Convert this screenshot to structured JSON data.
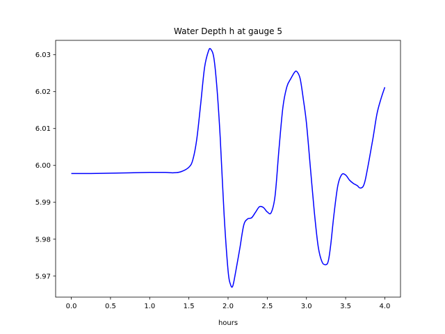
{
  "chart_data": {
    "type": "line",
    "title": "Water Depth h at gauge 5",
    "xlabel": "hours",
    "ylabel": "",
    "xlim": [
      -0.2,
      4.2
    ],
    "ylim": [
      5.9643,
      6.0339
    ],
    "xticks": [
      0.0,
      0.5,
      1.0,
      1.5,
      2.0,
      2.5,
      3.0,
      3.5,
      4.0
    ],
    "xtick_labels": [
      "0.0",
      "0.5",
      "1.0",
      "1.5",
      "2.0",
      "2.5",
      "3.0",
      "3.5",
      "4.0"
    ],
    "yticks": [
      5.97,
      5.98,
      5.99,
      6.0,
      6.01,
      6.02,
      6.03
    ],
    "ytick_labels": [
      "5.97",
      "5.98",
      "5.99",
      "6.00",
      "6.01",
      "6.02",
      "6.03"
    ],
    "grid": false,
    "series": [
      {
        "color": "#0000ff",
        "x": [
          0.0,
          0.25,
          0.5,
          0.75,
          1.0,
          1.2,
          1.3,
          1.4,
          1.5,
          1.55,
          1.6,
          1.65,
          1.7,
          1.75,
          1.78,
          1.82,
          1.86,
          1.9,
          1.95,
          2.0,
          2.03,
          2.06,
          2.1,
          2.15,
          2.2,
          2.25,
          2.3,
          2.35,
          2.4,
          2.45,
          2.5,
          2.55,
          2.6,
          2.65,
          2.7,
          2.75,
          2.8,
          2.85,
          2.88,
          2.92,
          2.96,
          3.0,
          3.05,
          3.1,
          3.15,
          3.2,
          3.25,
          3.28,
          3.31,
          3.35,
          3.4,
          3.45,
          3.5,
          3.55,
          3.6,
          3.65,
          3.68,
          3.72,
          3.75,
          3.8,
          3.85,
          3.9,
          3.95,
          4.0
        ],
        "y": [
          5.9978,
          5.9978,
          5.9979,
          5.998,
          5.9981,
          5.9981,
          5.998,
          5.9983,
          5.9995,
          6.0015,
          6.007,
          6.0165,
          6.0265,
          6.031,
          6.0315,
          6.029,
          6.0205,
          6.0075,
          5.9865,
          5.9715,
          5.9678,
          5.9673,
          5.9715,
          5.9775,
          5.9838,
          5.9855,
          5.9858,
          5.9873,
          5.9888,
          5.9886,
          5.9874,
          5.9872,
          5.9918,
          6.0045,
          6.0158,
          6.0213,
          6.0235,
          6.0253,
          6.0254,
          6.0235,
          6.018,
          6.0115,
          5.9995,
          5.9875,
          5.978,
          5.9738,
          5.9731,
          5.9742,
          5.9785,
          5.9865,
          5.9945,
          5.9975,
          5.9974,
          5.996,
          5.9951,
          5.9945,
          5.9939,
          5.9942,
          5.996,
          6.0015,
          6.0075,
          6.014,
          6.018,
          6.0212
        ]
      }
    ]
  }
}
